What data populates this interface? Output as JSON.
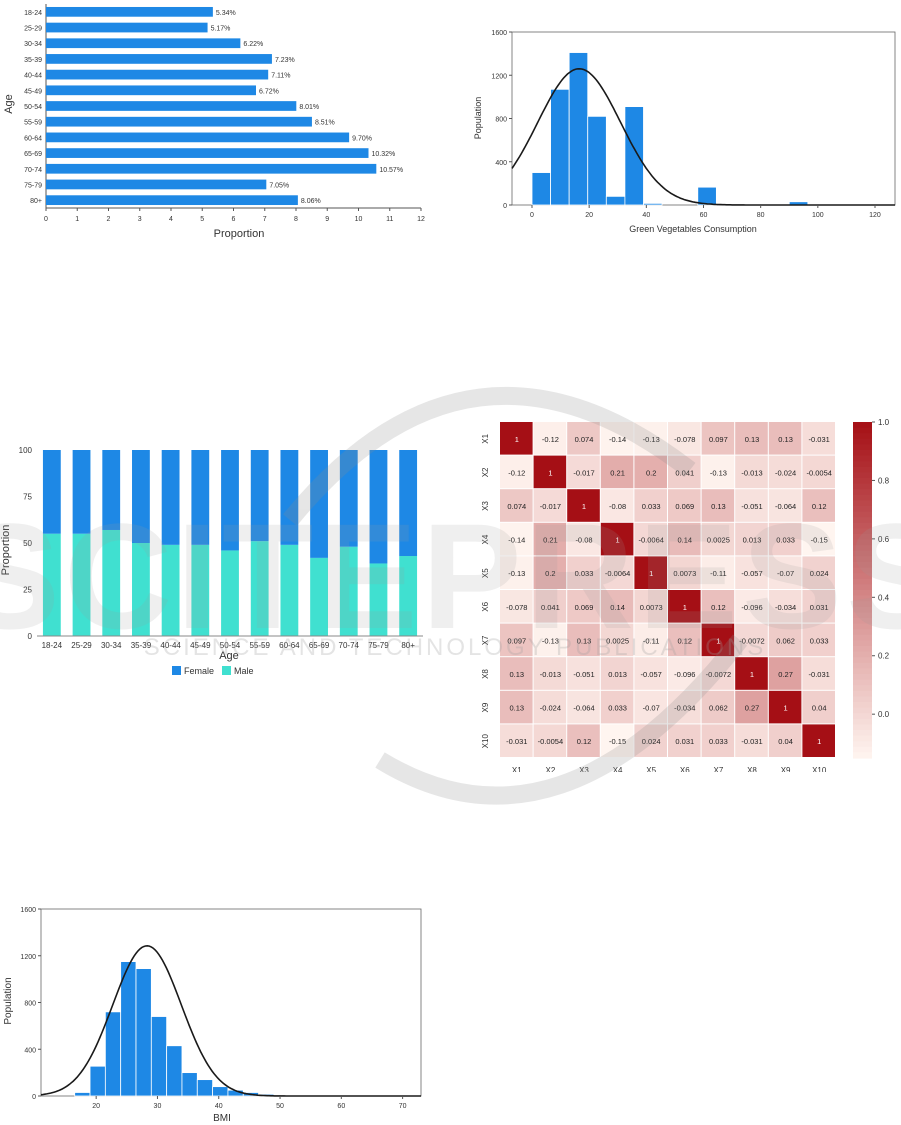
{
  "colors": {
    "bar": "#1e88e5",
    "male": "#40e0d0",
    "female": "#1e88e5",
    "curve": "#1a1a1a",
    "heat_low": "#fff5f0",
    "heat_high": "#a50f15"
  },
  "watermark": {
    "text": "SCITEPRESS",
    "subtext": "SCIENCE AND TECHNOLOGY PUBLICATIONS"
  },
  "chart_data": [
    {
      "id": "age-proportion",
      "type": "bar",
      "orientation": "horizontal",
      "categories": [
        "18-24",
        "25-29",
        "30-34",
        "35-39",
        "40-44",
        "45-49",
        "50-54",
        "55-59",
        "60-64",
        "65-69",
        "70-74",
        "75-79",
        "80+"
      ],
      "values": [
        5.34,
        5.17,
        6.22,
        7.23,
        7.11,
        6.72,
        8.01,
        8.51,
        9.7,
        10.32,
        10.57,
        7.05,
        8.06
      ],
      "data_labels": [
        "5.34%",
        "5.17%",
        "6.22%",
        "7.23%",
        "7.11%",
        "6.72%",
        "8.01%",
        "8.51%",
        "9.70%",
        "10.32%",
        "10.57%",
        "7.05%",
        "8.06%"
      ],
      "xlabel": "Proportion",
      "ylabel": "Age",
      "xlim": [
        0,
        12
      ],
      "xticks": [
        "0",
        "1",
        "2",
        "3",
        "4",
        "5",
        "6",
        "7",
        "8",
        "9",
        "10",
        "11",
        "12"
      ]
    },
    {
      "id": "green-veg-hist",
      "type": "bar",
      "subtype": "histogram",
      "bins": [
        [
          0,
          6.5
        ],
        [
          6.5,
          13
        ],
        [
          13,
          19.5
        ],
        [
          19.5,
          26
        ],
        [
          26,
          32.5
        ],
        [
          32.5,
          39
        ],
        [
          39,
          45.5
        ],
        [
          58,
          64.5
        ],
        [
          90,
          96.5
        ]
      ],
      "values": [
        300,
        1070,
        1410,
        820,
        80,
        910,
        15,
        165,
        30
      ],
      "curve": {
        "mean": 16.5,
        "sd": 14.5,
        "peak": 1260
      },
      "xlabel": "Green Vegetables Consumption",
      "ylabel": "Population",
      "xlim": [
        -7,
        127
      ],
      "ylim": [
        0,
        1600
      ],
      "xticks": [
        "0",
        "20",
        "40",
        "60",
        "80",
        "100",
        "120"
      ],
      "yticks": [
        "0",
        "400",
        "800",
        "1200",
        "1600"
      ]
    },
    {
      "id": "gender-by-age",
      "type": "bar",
      "subtype": "stacked-100",
      "categories": [
        "18-24",
        "25-29",
        "30-34",
        "35-39",
        "40-44",
        "45-49",
        "50-54",
        "55-59",
        "60-64",
        "65-69",
        "70-74",
        "75-79",
        "80+"
      ],
      "series": [
        {
          "name": "Male",
          "values": [
            55,
            55,
            57,
            50,
            49,
            49,
            46,
            51,
            49,
            42,
            48,
            39,
            43
          ]
        },
        {
          "name": "Female",
          "values": [
            45,
            45,
            43,
            50,
            51,
            51,
            54,
            49,
            51,
            58,
            52,
            61,
            57
          ]
        }
      ],
      "legend_order": [
        "Female",
        "Male"
      ],
      "legend": "bottom",
      "xlabel": "Age",
      "ylabel": "Proportion",
      "ylim": [
        0,
        100
      ],
      "yticks": [
        "0",
        "25",
        "50",
        "75",
        "100"
      ]
    },
    {
      "id": "correlation-heatmap",
      "type": "heatmap",
      "labels": [
        "X1",
        "X2",
        "X3",
        "X4",
        "X5",
        "X6",
        "X7",
        "X8",
        "X9",
        "X10"
      ],
      "matrix": [
        [
          1,
          -0.12,
          0.074,
          -0.14,
          -0.13,
          -0.078,
          0.097,
          0.13,
          0.13,
          -0.031
        ],
        [
          -0.12,
          1,
          -0.017,
          0.21,
          0.2,
          0.041,
          -0.13,
          -0.013,
          -0.024,
          -0.0054
        ],
        [
          0.074,
          -0.017,
          1,
          -0.08,
          0.033,
          0.069,
          0.13,
          -0.051,
          -0.064,
          0.12
        ],
        [
          -0.14,
          0.21,
          -0.08,
          1,
          -0.0064,
          0.14,
          0.0025,
          0.013,
          0.033,
          -0.15
        ],
        [
          -0.13,
          0.2,
          0.033,
          -0.0064,
          1,
          0.0073,
          -0.11,
          -0.057,
          -0.07,
          0.024
        ],
        [
          -0.078,
          0.041,
          0.069,
          0.14,
          0.0073,
          1,
          0.12,
          -0.096,
          -0.034,
          0.031
        ],
        [
          0.097,
          -0.13,
          0.13,
          0.0025,
          -0.11,
          0.12,
          1,
          -0.0072,
          0.062,
          0.033
        ],
        [
          0.13,
          -0.013,
          -0.051,
          0.013,
          -0.057,
          -0.096,
          -0.0072,
          1,
          0.27,
          -0.031
        ],
        [
          0.13,
          -0.024,
          -0.064,
          0.033,
          -0.07,
          -0.034,
          0.062,
          0.27,
          1,
          0.04
        ],
        [
          -0.031,
          -0.0054,
          0.12,
          -0.15,
          0.024,
          0.031,
          0.033,
          -0.031,
          0.04,
          1
        ]
      ],
      "cell_labels": [
        [
          "1",
          "-0.12",
          "0.074",
          "-0.14",
          "-0.13",
          "-0.078",
          "0.097",
          "0.13",
          "0.13",
          "-0.031"
        ],
        [
          "-0.12",
          "1",
          "-0.017",
          "0.21",
          "0.2",
          "0.041",
          "-0.13",
          "-0.013",
          "-0.024",
          "-0.0054"
        ],
        [
          "0.074",
          "-0.017",
          "1",
          "-0.08",
          "0.033",
          "0.069",
          "0.13",
          "-0.051",
          "-0.064",
          "0.12"
        ],
        [
          "-0.14",
          "0.21",
          "-0.08",
          "1",
          "-0.0064",
          "0.14",
          "0.0025",
          "0.013",
          "0.033",
          "-0.15"
        ],
        [
          "-0.13",
          "0.2",
          "0.033",
          "-0.0064",
          "1",
          "0.0073",
          "-0.11",
          "-0.057",
          "-0.07",
          "0.024"
        ],
        [
          "-0.078",
          "0.041",
          "0.069",
          "0.14",
          "0.0073",
          "1",
          "0.12",
          "-0.096",
          "-0.034",
          "0.031"
        ],
        [
          "0.097",
          "-0.13",
          "0.13",
          "0.0025",
          "-0.11",
          "0.12",
          "1",
          "-0.0072",
          "0.062",
          "0.033"
        ],
        [
          "0.13",
          "-0.013",
          "-0.051",
          "0.013",
          "-0.057",
          "-0.096",
          "-0.0072",
          "1",
          "0.27",
          "-0.031"
        ],
        [
          "0.13",
          "-0.024",
          "-0.064",
          "0.033",
          "-0.07",
          "-0.034",
          "0.062",
          "0.27",
          "1",
          "0.04"
        ],
        [
          "-0.031",
          "-0.0054",
          "0.12",
          "-0.15",
          "0.024",
          "0.031",
          "0.033",
          "-0.031",
          "0.04",
          "1"
        ]
      ],
      "colorbar": {
        "range": [
          -0.15,
          1.0
        ],
        "ticks": [
          0.0,
          0.2,
          0.4,
          0.6,
          0.8,
          1.0
        ],
        "tick_labels": [
          "0.0",
          "0.2",
          "0.4",
          "0.6",
          "0.8",
          "1.0"
        ]
      }
    },
    {
      "id": "bmi-hist",
      "type": "bar",
      "subtype": "histogram",
      "bins": [
        [
          16.5,
          19
        ],
        [
          19,
          21.5
        ],
        [
          21.5,
          24
        ],
        [
          24,
          26.5
        ],
        [
          26.5,
          29
        ],
        [
          29,
          31.5
        ],
        [
          31.5,
          34
        ],
        [
          34,
          36.5
        ],
        [
          36.5,
          39
        ],
        [
          39,
          41.5
        ],
        [
          41.5,
          44
        ],
        [
          44,
          46.5
        ],
        [
          46.5,
          49
        ],
        [
          49,
          51.5
        ],
        [
          51.5,
          54
        ]
      ],
      "values": [
        30,
        255,
        720,
        1150,
        1090,
        680,
        430,
        200,
        140,
        80,
        50,
        30,
        15,
        5,
        3
      ],
      "curve": {
        "mean": 28.3,
        "sd": 5.6,
        "peak": 1285
      },
      "xlabel": "BMI",
      "ylabel": "Population",
      "xlim": [
        11,
        73
      ],
      "ylim": [
        0,
        1600
      ],
      "xticks": [
        "20",
        "30",
        "40",
        "50",
        "60",
        "70"
      ],
      "yticks": [
        "0",
        "400",
        "800",
        "1200",
        "1600"
      ]
    }
  ]
}
